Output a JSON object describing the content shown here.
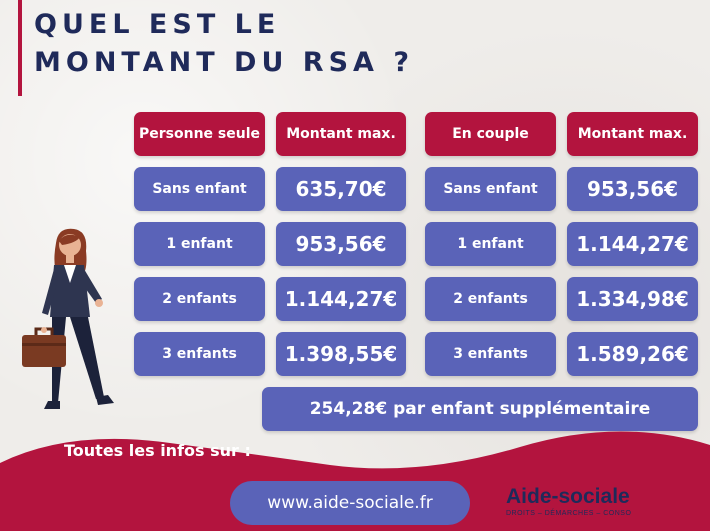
{
  "title": {
    "line1": "QUEL EST LE",
    "line2": "MONTANT DU RSA ?"
  },
  "headers": {
    "personne_seule": "Personne seule",
    "montant_max_1": "Montant max.",
    "en_couple": "En couple",
    "montant_max_2": "Montant max."
  },
  "rows": [
    {
      "seul_label": "Sans enfant",
      "seul_value": "635,70€",
      "couple_label": "Sans enfant",
      "couple_value": "953,56€"
    },
    {
      "seul_label": "1 enfant",
      "seul_value": "953,56€",
      "couple_label": "1 enfant",
      "couple_value": "1.144,27€"
    },
    {
      "seul_label": "2 enfants",
      "seul_value": "1.144,27€",
      "couple_label": "2 enfants",
      "couple_value": "1.334,98€"
    },
    {
      "seul_label": "3 enfants",
      "seul_value": "1.398,55€",
      "couple_label": "3 enfants",
      "couple_value": "1.589,26€"
    }
  ],
  "extra": "254,28€ par enfant supplémentaire",
  "footer": {
    "info_text": "Toutes les infos sur :",
    "url": "www.aide-sociale.fr",
    "logo_name": "Aide-sociale",
    "logo_tagline": "DROITS – DÉMARCHES – CONSO"
  },
  "colors": {
    "red": "#b3143e",
    "blue": "#5a63b8",
    "navy": "#1f2a5a",
    "background": "#efedea"
  }
}
